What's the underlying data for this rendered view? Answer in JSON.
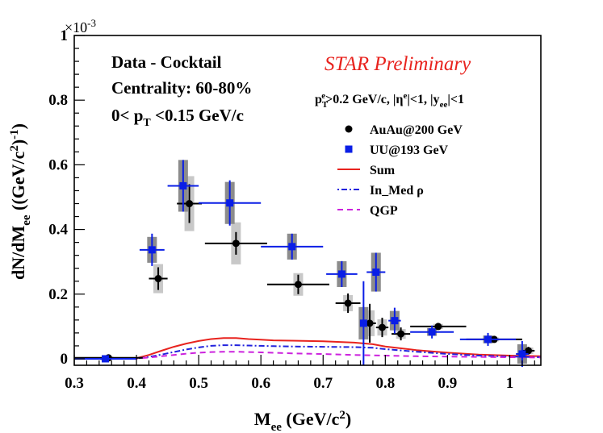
{
  "chart_data": {
    "type": "scatter",
    "title": "",
    "xlabel": "M_ee (GeV/c^2)",
    "ylabel": "dN/dM_ee ((GeV/c^2)^-1)",
    "xlim": [
      0.3,
      1.05
    ],
    "ylim": [
      -0.02,
      1.0
    ],
    "y_multiplier": "×10^-3",
    "x_ticks": [
      "0.3",
      "0.4",
      "0.5",
      "0.6",
      "0.7",
      "0.8",
      "0.9",
      "1"
    ],
    "y_ticks": [
      "0",
      "0.2",
      "0.4",
      "0.6",
      "0.8",
      "1"
    ],
    "annotations": {
      "line1": "Data - Cocktail",
      "line2": "Centrality: 60-80%",
      "line3": "0< p",
      "line3_sub": "T",
      "line3_tail": " <0.15 GeV/c",
      "preliminary": "STAR Preliminary",
      "cuts": "p_T^e>0.2 GeV/c, |η^e|<1, |y_ee|<1"
    },
    "legend": [
      {
        "label": "AuAu@200 GeV",
        "style": "black-circle"
      },
      {
        "label": "UU@193 GeV",
        "style": "blue-square"
      },
      {
        "label": "Sum",
        "style": "red-solid"
      },
      {
        "label": "In_Med  ρ",
        "style": "blue-dashdot"
      },
      {
        "label": "QGP",
        "style": "magenta-dashed"
      }
    ],
    "series": [
      {
        "name": "AuAu@200 GeV",
        "color": "#000000",
        "marker": "circle",
        "points": [
          {
            "x": 0.355,
            "y": 0.003,
            "xerr": 0.055,
            "yerr": 0.004,
            "sys": 0.004
          },
          {
            "x": 0.435,
            "y": 0.248,
            "xerr": 0.015,
            "yerr": 0.035,
            "sys": 0.045
          },
          {
            "x": 0.485,
            "y": 0.48,
            "xerr": 0.02,
            "yerr": 0.06,
            "sys": 0.085
          },
          {
            "x": 0.56,
            "y": 0.357,
            "xerr": 0.05,
            "yerr": 0.035,
            "sys": 0.065
          },
          {
            "x": 0.66,
            "y": 0.23,
            "xerr": 0.05,
            "yerr": 0.03,
            "sys": 0.035
          },
          {
            "x": 0.74,
            "y": 0.172,
            "xerr": 0.02,
            "yerr": 0.03,
            "sys": 0.025
          },
          {
            "x": 0.775,
            "y": 0.11,
            "xerr": 0.01,
            "yerr": 0.06,
            "sys": 0.04
          },
          {
            "x": 0.795,
            "y": 0.097,
            "xerr": 0.01,
            "yerr": 0.03,
            "sys": 0.025
          },
          {
            "x": 0.825,
            "y": 0.077,
            "xerr": 0.015,
            "yerr": 0.02,
            "sys": 0.015
          },
          {
            "x": 0.885,
            "y": 0.1,
            "xerr": 0.045,
            "yerr": 0.01,
            "sys": 0.008
          },
          {
            "x": 0.975,
            "y": 0.06,
            "xerr": 0.045,
            "yerr": 0.008,
            "sys": 0.006
          },
          {
            "x": 1.03,
            "y": 0.025,
            "xerr": 0.01,
            "yerr": 0.012,
            "sys": 0.01
          }
        ]
      },
      {
        "name": "UU@193 GeV",
        "color": "#0a1ee6",
        "marker": "square",
        "points": [
          {
            "x": 0.35,
            "y": 0.0,
            "xerr": 0.05,
            "yerr": 0.004,
            "sys": 0.004
          },
          {
            "x": 0.425,
            "y": 0.337,
            "xerr": 0.02,
            "yerr": 0.05,
            "sys": 0.04
          },
          {
            "x": 0.475,
            "y": 0.535,
            "xerr": 0.025,
            "yerr": 0.08,
            "sys": 0.08
          },
          {
            "x": 0.55,
            "y": 0.482,
            "xerr": 0.05,
            "yerr": 0.07,
            "sys": 0.065
          },
          {
            "x": 0.65,
            "y": 0.347,
            "xerr": 0.05,
            "yerr": 0.04,
            "sys": 0.04
          },
          {
            "x": 0.73,
            "y": 0.262,
            "xerr": 0.025,
            "yerr": 0.04,
            "sys": 0.04
          },
          {
            "x": 0.765,
            "y": 0.11,
            "xerr": 0.005,
            "yerr": 0.13,
            "sys": 0.05
          },
          {
            "x": 0.785,
            "y": 0.268,
            "xerr": 0.015,
            "yerr": 0.06,
            "sys": 0.06
          },
          {
            "x": 0.815,
            "y": 0.118,
            "xerr": 0.01,
            "yerr": 0.04,
            "sys": 0.03
          },
          {
            "x": 0.875,
            "y": 0.083,
            "xerr": 0.035,
            "yerr": 0.02,
            "sys": 0.012
          },
          {
            "x": 0.965,
            "y": 0.06,
            "xerr": 0.045,
            "yerr": 0.02,
            "sys": 0.012
          },
          {
            "x": 1.02,
            "y": 0.015,
            "xerr": 0.01,
            "yerr": 0.04,
            "sys": 0.03
          }
        ]
      }
    ],
    "curves": [
      {
        "name": "Sum",
        "color": "#e8231e",
        "dash": "",
        "x": [
          0.3,
          0.4,
          0.42,
          0.44,
          0.46,
          0.48,
          0.5,
          0.52,
          0.54,
          0.56,
          0.58,
          0.6,
          0.62,
          0.65,
          0.7,
          0.75,
          0.78,
          0.8,
          0.85,
          0.9,
          0.95,
          1.0,
          1.05
        ],
        "y": [
          0.0,
          0.002,
          0.012,
          0.025,
          0.037,
          0.047,
          0.055,
          0.061,
          0.064,
          0.064,
          0.061,
          0.059,
          0.057,
          0.056,
          0.054,
          0.05,
          0.045,
          0.038,
          0.027,
          0.019,
          0.013,
          0.01,
          0.008
        ]
      },
      {
        "name": "In_Med ρ",
        "color": "#2222dd",
        "dash": "2,3,7,3",
        "x": [
          0.3,
          0.4,
          0.42,
          0.44,
          0.46,
          0.48,
          0.5,
          0.52,
          0.54,
          0.56,
          0.58,
          0.6,
          0.62,
          0.65,
          0.7,
          0.75,
          0.78,
          0.8,
          0.85,
          0.9,
          0.95,
          1.0,
          1.05
        ],
        "y": [
          0.0,
          0.001,
          0.006,
          0.013,
          0.021,
          0.029,
          0.035,
          0.04,
          0.042,
          0.042,
          0.041,
          0.04,
          0.039,
          0.038,
          0.037,
          0.036,
          0.034,
          0.03,
          0.022,
          0.015,
          0.01,
          0.007,
          0.005
        ]
      },
      {
        "name": "QGP",
        "color": "#cc22dd",
        "dash": "7,5",
        "x": [
          0.3,
          0.4,
          0.42,
          0.44,
          0.46,
          0.48,
          0.5,
          0.52,
          0.54,
          0.56,
          0.58,
          0.6,
          0.65,
          0.7,
          0.75,
          0.8,
          0.85,
          0.9,
          0.95,
          1.0,
          1.05
        ],
        "y": [
          0.0,
          0.001,
          0.004,
          0.008,
          0.012,
          0.016,
          0.019,
          0.021,
          0.022,
          0.022,
          0.021,
          0.02,
          0.017,
          0.015,
          0.012,
          0.01,
          0.008,
          0.007,
          0.006,
          0.005,
          0.004
        ]
      }
    ]
  }
}
